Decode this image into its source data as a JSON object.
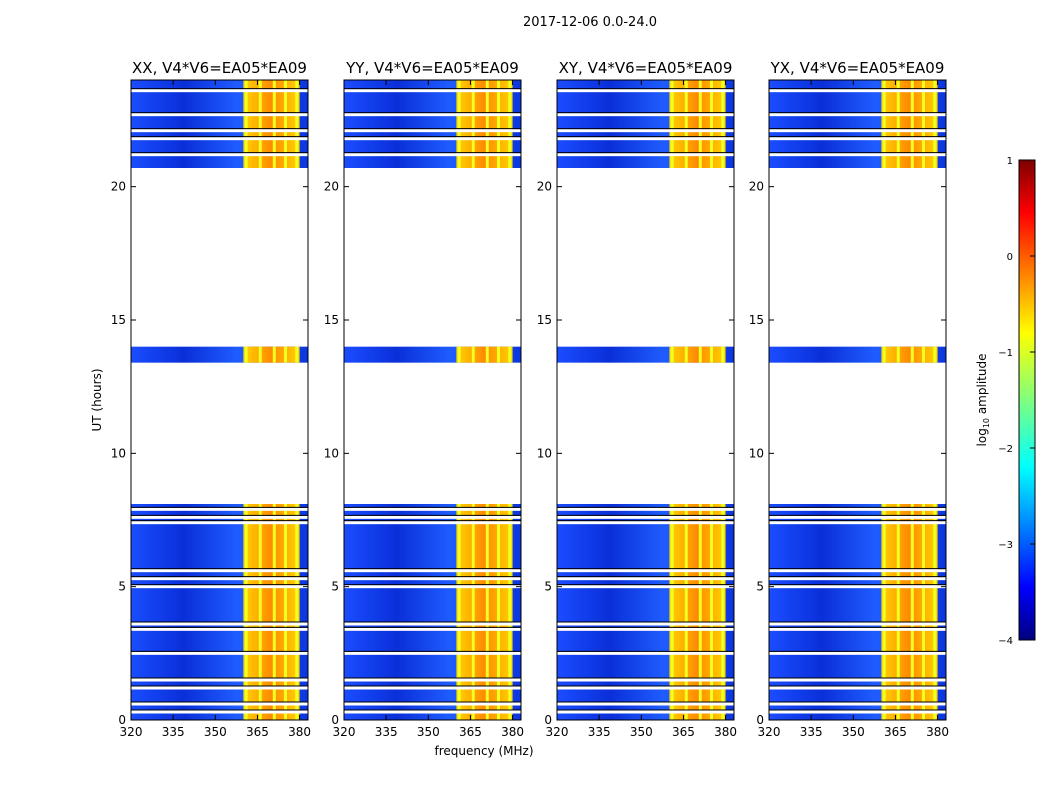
{
  "chart_data": {
    "type": "heatmap",
    "suptitle": "2017-12-06 0.0-24.0",
    "xlabel": "frequency (MHz)",
    "ylabel": "UT (hours)",
    "xlim": [
      320,
      383
    ],
    "ylim": [
      0,
      24
    ],
    "xticks": [
      320,
      335,
      350,
      365,
      380
    ],
    "yticks": [
      0,
      5,
      10,
      15,
      20
    ],
    "panels": [
      {
        "title": "XX, V4*V6=EA05*EA09"
      },
      {
        "title": "YY, V4*V6=EA05*EA09"
      },
      {
        "title": "XY, V4*V6=EA05*EA09"
      },
      {
        "title": "YX, V4*V6=EA05*EA09"
      }
    ],
    "data_time_ranges_hours": [
      [
        0,
        8.1
      ],
      [
        13.4,
        14.0
      ],
      [
        20.7,
        24.0
      ]
    ],
    "flagged_time_lines_hours": [
      0.3,
      0.6,
      1.2,
      1.5,
      2.5,
      3.4,
      3.6,
      5.0,
      5.3,
      5.6,
      7.4,
      7.6,
      7.9,
      21.2,
      21.8,
      22.1,
      22.7,
      23.6
    ],
    "rfi_band_MHz": [
      360,
      380
    ],
    "rfi_stripes_MHz": [
      361,
      366,
      371,
      375,
      379
    ],
    "colorbar": {
      "label": "log",
      "label_sub": "10",
      "label_rest": " amplitude",
      "range": [
        -4,
        1
      ],
      "ticks": [
        1,
        0,
        -1,
        -2,
        -3,
        -4
      ],
      "colormap": "jet"
    }
  }
}
